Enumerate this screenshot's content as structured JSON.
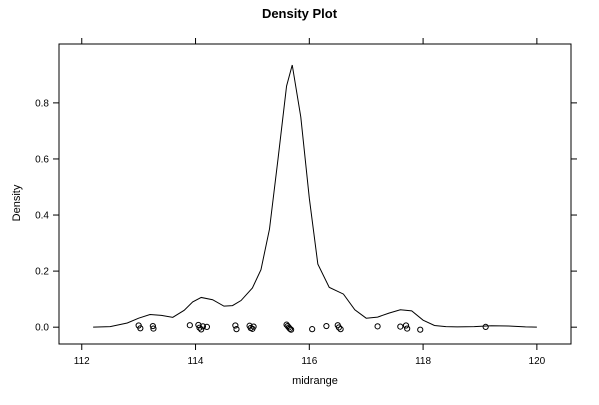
{
  "chart_data": {
    "type": "line",
    "title": "Density Plot",
    "xlabel": "midrange",
    "ylabel": "Density",
    "xlim": [
      111.6,
      120.6
    ],
    "ylim": [
      -0.06,
      1.01
    ],
    "x_ticks": [
      112,
      114,
      116,
      118,
      120
    ],
    "x_tick_labels": [
      "112",
      "114",
      "116",
      "118",
      "120"
    ],
    "y_ticks": [
      0.0,
      0.2,
      0.4,
      0.6,
      0.8
    ],
    "y_tick_labels": [
      "0.0",
      "0.2",
      "0.4",
      "0.6",
      "0.8"
    ],
    "grid": false,
    "legend": "none",
    "colors": {
      "line": "#000000",
      "points": "#000000",
      "frame": "#000000"
    },
    "series": [
      {
        "kind": "density-line",
        "x": [
          112.2,
          112.5,
          112.8,
          113.0,
          113.2,
          113.4,
          113.6,
          113.8,
          113.95,
          114.1,
          114.3,
          114.5,
          114.65,
          114.8,
          115.0,
          115.15,
          115.3,
          115.45,
          115.6,
          115.7,
          115.85,
          116.0,
          116.15,
          116.35,
          116.6,
          116.8,
          117.0,
          117.2,
          117.4,
          117.6,
          117.8,
          118.0,
          118.2,
          118.4,
          118.6,
          118.9,
          119.2,
          119.5,
          119.8,
          120.0
        ],
        "y": [
          0.0,
          0.002,
          0.015,
          0.032,
          0.045,
          0.042,
          0.035,
          0.06,
          0.09,
          0.106,
          0.098,
          0.075,
          0.077,
          0.095,
          0.14,
          0.205,
          0.35,
          0.6,
          0.86,
          0.935,
          0.75,
          0.46,
          0.225,
          0.142,
          0.118,
          0.062,
          0.032,
          0.036,
          0.05,
          0.062,
          0.058,
          0.025,
          0.006,
          0.002,
          0.001,
          0.002,
          0.005,
          0.004,
          0.001,
          0.0
        ]
      },
      {
        "kind": "jittered-points",
        "x": [
          113.0,
          113.03,
          113.25,
          113.26,
          113.9,
          114.05,
          114.07,
          114.1,
          114.13,
          114.2,
          114.7,
          114.72,
          114.95,
          114.97,
          115.0,
          115.02,
          115.6,
          115.62,
          115.64,
          115.66,
          115.68,
          116.05,
          116.3,
          116.5,
          116.52,
          116.55,
          117.2,
          117.6,
          117.7,
          117.72,
          117.95,
          119.1
        ],
        "y": [
          0.006,
          -0.004,
          0.004,
          -0.005,
          0.007,
          0.008,
          -0.002,
          -0.008,
          0.003,
          0.001,
          0.006,
          -0.007,
          0.005,
          -0.003,
          -0.006,
          0.002,
          0.009,
          0.004,
          -0.001,
          -0.006,
          -0.009,
          -0.007,
          0.004,
          0.007,
          -0.001,
          -0.007,
          0.003,
          0.002,
          0.006,
          -0.005,
          -0.009,
          0.001
        ]
      }
    ]
  }
}
